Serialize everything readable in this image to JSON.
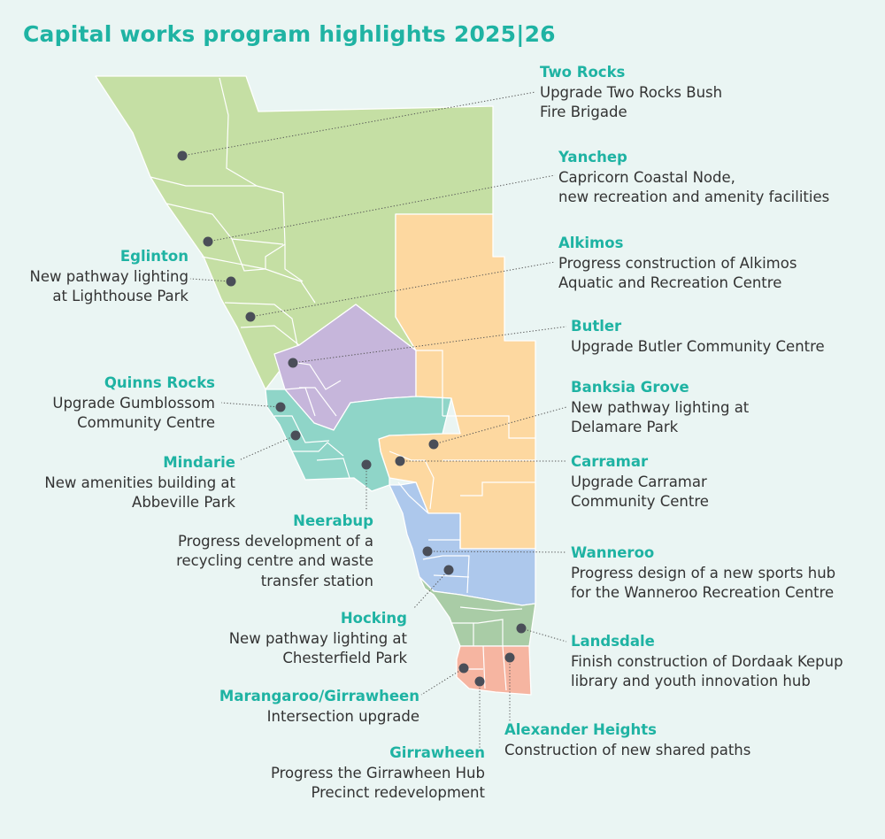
{
  "title": "Capital works program highlights 2025|26",
  "colors": {
    "accent": "#1fb3a3",
    "north_green": "#c5dfa4",
    "purple": "#c6b6db",
    "teal": "#8fd5c8",
    "orange": "#fdd8a0",
    "blue": "#adc8ec",
    "south_green": "#a9cca6",
    "pink": "#f6b5a1",
    "marker": "#4a4e58"
  },
  "projects": {
    "two_rocks": {
      "name": "Two Rocks",
      "desc": "Upgrade Two Rocks Bush\nFire Brigade"
    },
    "yanchep": {
      "name": "Yanchep",
      "desc": "Capricorn Coastal Node,\nnew recreation and amenity facilities"
    },
    "alkimos": {
      "name": "Alkimos",
      "desc": "Progress construction of Alkimos\nAquatic and Recreation Centre"
    },
    "butler": {
      "name": "Butler",
      "desc": "Upgrade Butler Community Centre"
    },
    "banksia_grove": {
      "name": "Banksia Grove",
      "desc": "New pathway lighting at\nDelamare Park"
    },
    "carramar": {
      "name": "Carramar",
      "desc": "Upgrade Carramar\nCommunity Centre"
    },
    "wanneroo": {
      "name": "Wanneroo",
      "desc": "Progress design of a new sports hub\nfor the Wanneroo Recreation Centre"
    },
    "landsdale": {
      "name": "Landsdale",
      "desc": "Finish construction of Dordaak Kepup\nlibrary and youth innovation hub"
    },
    "alexander_heights": {
      "name": "Alexander Heights",
      "desc": "Construction of new shared paths"
    },
    "girrawheen": {
      "name": "Girrawheen",
      "desc": "Progress the Girrawheen Hub\nPrecinct redevelopment"
    },
    "marangaroo": {
      "name": "Marangaroo/Girrawheen",
      "desc": "Intersection upgrade"
    },
    "hocking": {
      "name": "Hocking",
      "desc": "New pathway lighting at\nChesterfield Park"
    },
    "neerabup": {
      "name": "Neerabup",
      "desc": "Progress development of a\nrecycling centre and waste\ntransfer station"
    },
    "mindarie": {
      "name": "Mindarie",
      "desc": "New amenities building at\nAbbeville Park"
    },
    "quinns_rocks": {
      "name": "Quinns Rocks",
      "desc": "Upgrade Gumblossom\nCommunity Centre"
    },
    "eglinton": {
      "name": "Eglinton",
      "desc": "New pathway lighting\nat Lighthouse Park"
    }
  }
}
